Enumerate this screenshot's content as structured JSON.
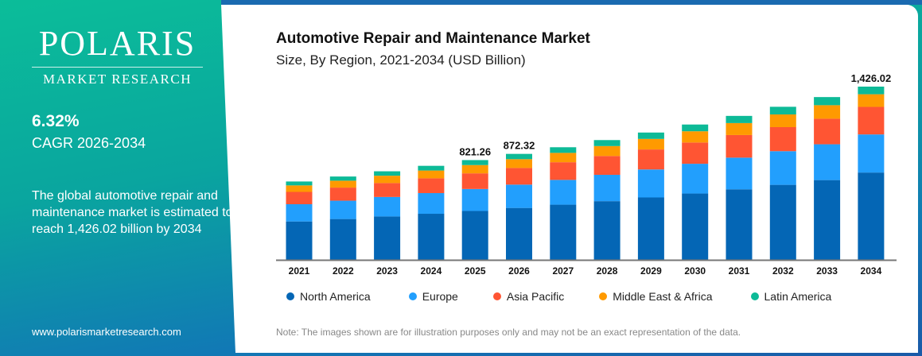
{
  "brand": {
    "name": "POLARIS",
    "tagline": "MARKET RESEARCH",
    "website": "www.polarismarketresearch.com"
  },
  "sidebar": {
    "cagr_value": "6.32%",
    "cagr_label": "CAGR 2026-2034",
    "description": "The global automotive repair and maintenance market is estimated to reach 1,426.02 billion by 2034"
  },
  "note": "Note: The images shown are for illustration purposes only and may not be an exact representation of the data.",
  "chart_data": {
    "type": "bar",
    "stacked": true,
    "title": "Automotive Repair and Maintenance Market",
    "subtitle": "Size, By Region, 2021-2034 (USD Billion)",
    "xlabel": "",
    "ylabel": "",
    "ylim": [
      0,
      1500
    ],
    "grid": false,
    "legend_position": "bottom",
    "categories": [
      "2021",
      "2022",
      "2023",
      "2024",
      "2025",
      "2026",
      "2027",
      "2028",
      "2029",
      "2030",
      "2031",
      "2032",
      "2033",
      "2034"
    ],
    "series": [
      {
        "name": "North America",
        "color": "#0466b5",
        "values": [
          316.1,
          336.1,
          357.2,
          379.3,
          402.4,
          427.4,
          454.2,
          483.1,
          513.5,
          545.9,
          580.7,
          617.4,
          656.6,
          718.7
        ]
      },
      {
        "name": "Europe",
        "color": "#229ffd",
        "values": [
          141.9,
          150.9,
          160.4,
          170.3,
          180.7,
          191.9,
          203.9,
          216.9,
          230.6,
          245.1,
          260.7,
          277.2,
          294.8,
          313.7
        ]
      },
      {
        "name": "Asia Pacific",
        "color": "#ff5533",
        "values": [
          101.3,
          107.7,
          114.5,
          121.5,
          128.9,
          137.0,
          145.5,
          154.8,
          164.5,
          174.9,
          186.0,
          197.8,
          210.4,
          226.7
        ]
      },
      {
        "name": "Middle East & Africa",
        "color": "#ff9a00",
        "values": [
          53.5,
          56.9,
          60.5,
          64.2,
          68.2,
          72.4,
          76.9,
          81.8,
          87.0,
          92.5,
          98.4,
          104.6,
          111.2,
          104.1
        ]
      },
      {
        "name": "Latin America",
        "color": "#0dba97",
        "values": [
          32.2,
          34.4,
          36.4,
          38.7,
          41.06,
          43.62,
          46.5,
          49.4,
          52.4,
          55.6,
          59.2,
          63.0,
          67.0,
          62.82
        ]
      }
    ],
    "data_labels": {
      "2025": "821.26",
      "2026": "872.32",
      "2034": "1,426.02"
    }
  }
}
